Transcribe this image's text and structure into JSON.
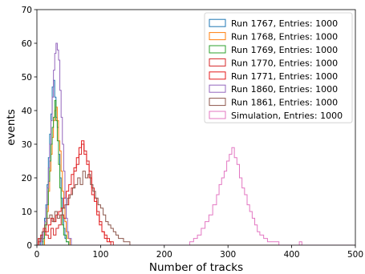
{
  "chart_data": {
    "type": "histogram",
    "xlabel": "Number of tracks",
    "ylabel": "events",
    "xlim": [
      0,
      500
    ],
    "ylim": [
      0,
      70
    ],
    "x_ticks": [
      "0",
      "100",
      "200",
      "300",
      "400",
      "500"
    ],
    "y_ticks": [
      "0",
      "10",
      "20",
      "30",
      "40",
      "50",
      "60",
      "70"
    ],
    "grid": false,
    "legend_position": "top-right",
    "series": [
      {
        "name": "Run 1767, Entries: 1000",
        "color": "#1f77b4",
        "values": [
          [
            0,
            0
          ],
          [
            4,
            0
          ],
          [
            6,
            3
          ],
          [
            8,
            1
          ],
          [
            10,
            4
          ],
          [
            12,
            8
          ],
          [
            14,
            12
          ],
          [
            16,
            18
          ],
          [
            18,
            26
          ],
          [
            20,
            33
          ],
          [
            22,
            39
          ],
          [
            24,
            47
          ],
          [
            26,
            49
          ],
          [
            28,
            44
          ],
          [
            30,
            38
          ],
          [
            32,
            35
          ],
          [
            34,
            27
          ],
          [
            36,
            20
          ],
          [
            38,
            14
          ],
          [
            40,
            9
          ],
          [
            42,
            5
          ],
          [
            44,
            2
          ],
          [
            46,
            1
          ],
          [
            50,
            0
          ],
          [
            500,
            0
          ]
        ]
      },
      {
        "name": "Run 1768, Entries: 1000",
        "color": "#ff7f0e",
        "values": [
          [
            0,
            0
          ],
          [
            10,
            0
          ],
          [
            12,
            3
          ],
          [
            14,
            6
          ],
          [
            16,
            10
          ],
          [
            18,
            16
          ],
          [
            20,
            22
          ],
          [
            22,
            27
          ],
          [
            24,
            32
          ],
          [
            26,
            37
          ],
          [
            28,
            40
          ],
          [
            30,
            41
          ],
          [
            32,
            37
          ],
          [
            34,
            31
          ],
          [
            36,
            28
          ],
          [
            38,
            22
          ],
          [
            40,
            16
          ],
          [
            42,
            11
          ],
          [
            44,
            7
          ],
          [
            46,
            4
          ],
          [
            48,
            2
          ],
          [
            52,
            0
          ],
          [
            500,
            0
          ]
        ]
      },
      {
        "name": "Run 1769, Entries: 1000",
        "color": "#2ca02c",
        "values": [
          [
            0,
            0
          ],
          [
            8,
            0
          ],
          [
            10,
            2
          ],
          [
            12,
            4
          ],
          [
            14,
            8
          ],
          [
            16,
            12
          ],
          [
            18,
            19
          ],
          [
            20,
            25
          ],
          [
            22,
            30
          ],
          [
            24,
            35
          ],
          [
            26,
            38
          ],
          [
            28,
            43
          ],
          [
            30,
            37
          ],
          [
            32,
            31
          ],
          [
            34,
            24
          ],
          [
            36,
            17
          ],
          [
            38,
            11
          ],
          [
            40,
            6
          ],
          [
            42,
            3
          ],
          [
            46,
            1
          ],
          [
            50,
            0
          ],
          [
            500,
            0
          ]
        ]
      },
      {
        "name": "Run 1770, Entries: 1000",
        "color": "#d62728",
        "values": [
          [
            0,
            0
          ],
          [
            2,
            1
          ],
          [
            6,
            2
          ],
          [
            10,
            4
          ],
          [
            14,
            3
          ],
          [
            18,
            2
          ],
          [
            22,
            5
          ],
          [
            26,
            3
          ],
          [
            30,
            5
          ],
          [
            34,
            6
          ],
          [
            38,
            9
          ],
          [
            42,
            8
          ],
          [
            46,
            12
          ],
          [
            50,
            15
          ],
          [
            54,
            17
          ],
          [
            58,
            22
          ],
          [
            62,
            24
          ],
          [
            66,
            27
          ],
          [
            70,
            30
          ],
          [
            74,
            28
          ],
          [
            78,
            25
          ],
          [
            82,
            22
          ],
          [
            86,
            17
          ],
          [
            90,
            14
          ],
          [
            94,
            10
          ],
          [
            98,
            7
          ],
          [
            102,
            4
          ],
          [
            106,
            3
          ],
          [
            110,
            2
          ],
          [
            114,
            1
          ],
          [
            120,
            0
          ],
          [
            500,
            0
          ]
        ]
      },
      {
        "name": "Run 1771, Entries: 1000",
        "color": "#e41a1c",
        "values": [
          [
            0,
            0
          ],
          [
            2,
            2
          ],
          [
            6,
            3
          ],
          [
            10,
            5
          ],
          [
            14,
            4
          ],
          [
            18,
            6
          ],
          [
            22,
            8
          ],
          [
            26,
            7
          ],
          [
            30,
            9
          ],
          [
            34,
            10
          ],
          [
            38,
            11
          ],
          [
            42,
            14
          ],
          [
            46,
            16
          ],
          [
            50,
            18
          ],
          [
            54,
            21
          ],
          [
            58,
            23
          ],
          [
            62,
            26
          ],
          [
            66,
            29
          ],
          [
            70,
            31
          ],
          [
            74,
            27
          ],
          [
            78,
            24
          ],
          [
            82,
            20
          ],
          [
            86,
            15
          ],
          [
            90,
            13
          ],
          [
            94,
            9
          ],
          [
            98,
            6
          ],
          [
            102,
            4
          ],
          [
            106,
            2
          ],
          [
            110,
            1
          ],
          [
            116,
            0
          ],
          [
            500,
            0
          ]
        ]
      },
      {
        "name": "Run 1860, Entries: 1000",
        "color": "#9467bd",
        "values": [
          [
            0,
            0
          ],
          [
            6,
            0
          ],
          [
            8,
            2
          ],
          [
            10,
            4
          ],
          [
            12,
            7
          ],
          [
            14,
            11
          ],
          [
            16,
            17
          ],
          [
            18,
            23
          ],
          [
            20,
            30
          ],
          [
            22,
            37
          ],
          [
            24,
            44
          ],
          [
            26,
            52
          ],
          [
            28,
            57
          ],
          [
            30,
            60
          ],
          [
            32,
            58
          ],
          [
            34,
            55
          ],
          [
            36,
            46
          ],
          [
            38,
            38
          ],
          [
            40,
            30
          ],
          [
            42,
            22
          ],
          [
            44,
            14
          ],
          [
            46,
            8
          ],
          [
            48,
            4
          ],
          [
            50,
            2
          ],
          [
            54,
            0
          ],
          [
            500,
            0
          ]
        ]
      },
      {
        "name": "Run 1861, Entries: 1000",
        "color": "#8c564b",
        "values": [
          [
            0,
            0
          ],
          [
            4,
            2
          ],
          [
            8,
            4
          ],
          [
            12,
            6
          ],
          [
            16,
            8
          ],
          [
            20,
            9
          ],
          [
            24,
            7
          ],
          [
            28,
            10
          ],
          [
            32,
            8
          ],
          [
            36,
            9
          ],
          [
            40,
            11
          ],
          [
            44,
            12
          ],
          [
            48,
            14
          ],
          [
            52,
            15
          ],
          [
            56,
            17
          ],
          [
            60,
            18
          ],
          [
            64,
            20
          ],
          [
            68,
            18
          ],
          [
            72,
            22
          ],
          [
            76,
            20
          ],
          [
            80,
            21
          ],
          [
            84,
            18
          ],
          [
            88,
            16
          ],
          [
            92,
            14
          ],
          [
            96,
            12
          ],
          [
            100,
            11
          ],
          [
            104,
            9
          ],
          [
            108,
            7
          ],
          [
            112,
            6
          ],
          [
            116,
            5
          ],
          [
            120,
            4
          ],
          [
            124,
            3
          ],
          [
            128,
            2
          ],
          [
            132,
            2
          ],
          [
            136,
            1
          ],
          [
            140,
            1
          ],
          [
            146,
            0
          ],
          [
            500,
            0
          ]
        ]
      },
      {
        "name": "Simulation, Entries: 1000",
        "color": "#e377c2",
        "values": [
          [
            0,
            0
          ],
          [
            236,
            0
          ],
          [
            240,
            1
          ],
          [
            246,
            2
          ],
          [
            252,
            3
          ],
          [
            258,
            5
          ],
          [
            264,
            7
          ],
          [
            270,
            9
          ],
          [
            276,
            12
          ],
          [
            282,
            15
          ],
          [
            286,
            18
          ],
          [
            290,
            20
          ],
          [
            294,
            22
          ],
          [
            298,
            25
          ],
          [
            302,
            27
          ],
          [
            306,
            29
          ],
          [
            310,
            26
          ],
          [
            314,
            24
          ],
          [
            318,
            20
          ],
          [
            322,
            17
          ],
          [
            326,
            15
          ],
          [
            330,
            12
          ],
          [
            334,
            10
          ],
          [
            338,
            8
          ],
          [
            342,
            6
          ],
          [
            346,
            4
          ],
          [
            350,
            3
          ],
          [
            356,
            2
          ],
          [
            362,
            1
          ],
          [
            372,
            1
          ],
          [
            380,
            0
          ],
          [
            412,
            1
          ],
          [
            416,
            0
          ],
          [
            500,
            0
          ]
        ]
      }
    ]
  }
}
